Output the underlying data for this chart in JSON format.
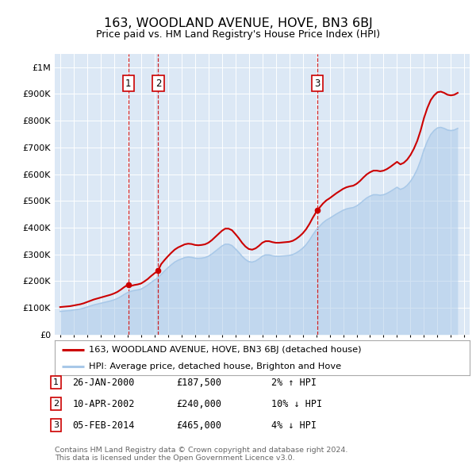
{
  "title": "163, WOODLAND AVENUE, HOVE, BN3 6BJ",
  "subtitle": "Price paid vs. HM Land Registry's House Price Index (HPI)",
  "background_color": "#ffffff",
  "plot_bg_color": "#dce8f5",
  "ylim": [
    0,
    1050000
  ],
  "yticks": [
    0,
    100000,
    200000,
    300000,
    400000,
    500000,
    600000,
    700000,
    800000,
    900000,
    1000000
  ],
  "ytick_labels": [
    "£0",
    "£100K",
    "£200K",
    "£300K",
    "£400K",
    "£500K",
    "£600K",
    "£700K",
    "£800K",
    "£900K",
    "£1M"
  ],
  "xlim_start": 1994.6,
  "xlim_end": 2025.4,
  "hpi_color": "#a8c8e8",
  "hpi_line_color": "#a8c8e8",
  "price_color": "#cc0000",
  "marker_color": "#cc0000",
  "vline_color": "#cc0000",
  "transactions": [
    {
      "id": 1,
      "date": "26-JAN-2000",
      "year": 2000.07,
      "price": 187500,
      "pct": "2%",
      "dir": "↑"
    },
    {
      "id": 2,
      "date": "10-APR-2002",
      "year": 2002.28,
      "price": 240000,
      "pct": "10%",
      "dir": "↓"
    },
    {
      "id": 3,
      "date": "05-FEB-2014",
      "year": 2014.1,
      "price": 465000,
      "pct": "4%",
      "dir": "↓"
    }
  ],
  "legend_label_red": "163, WOODLAND AVENUE, HOVE, BN3 6BJ (detached house)",
  "legend_label_blue": "HPI: Average price, detached house, Brighton and Hove",
  "footer1": "Contains HM Land Registry data © Crown copyright and database right 2024.",
  "footer2": "This data is licensed under the Open Government Licence v3.0.",
  "hpi_data_x": [
    1995.0,
    1995.25,
    1995.5,
    1995.75,
    1996.0,
    1996.25,
    1996.5,
    1996.75,
    1997.0,
    1997.25,
    1997.5,
    1997.75,
    1998.0,
    1998.25,
    1998.5,
    1998.75,
    1999.0,
    1999.25,
    1999.5,
    1999.75,
    2000.0,
    2000.25,
    2000.5,
    2000.75,
    2001.0,
    2001.25,
    2001.5,
    2001.75,
    2002.0,
    2002.25,
    2002.5,
    2002.75,
    2003.0,
    2003.25,
    2003.5,
    2003.75,
    2004.0,
    2004.25,
    2004.5,
    2004.75,
    2005.0,
    2005.25,
    2005.5,
    2005.75,
    2006.0,
    2006.25,
    2006.5,
    2006.75,
    2007.0,
    2007.25,
    2007.5,
    2007.75,
    2008.0,
    2008.25,
    2008.5,
    2008.75,
    2009.0,
    2009.25,
    2009.5,
    2009.75,
    2010.0,
    2010.25,
    2010.5,
    2010.75,
    2011.0,
    2011.25,
    2011.5,
    2011.75,
    2012.0,
    2012.25,
    2012.5,
    2012.75,
    2013.0,
    2013.25,
    2013.5,
    2013.75,
    2014.0,
    2014.25,
    2014.5,
    2014.75,
    2015.0,
    2015.25,
    2015.5,
    2015.75,
    2016.0,
    2016.25,
    2016.5,
    2016.75,
    2017.0,
    2017.25,
    2017.5,
    2017.75,
    2018.0,
    2018.25,
    2018.5,
    2018.75,
    2019.0,
    2019.25,
    2019.5,
    2019.75,
    2020.0,
    2020.25,
    2020.5,
    2020.75,
    2021.0,
    2021.25,
    2021.5,
    2021.75,
    2022.0,
    2022.25,
    2022.5,
    2022.75,
    2023.0,
    2023.25,
    2023.5,
    2023.75,
    2024.0,
    2024.25,
    2024.5
  ],
  "hpi_data_y": [
    87000,
    88000,
    89000,
    90000,
    92000,
    94000,
    96000,
    99000,
    103000,
    107000,
    111000,
    114000,
    117000,
    120000,
    123000,
    126000,
    130000,
    135000,
    142000,
    150000,
    157000,
    162000,
    165000,
    167000,
    170000,
    177000,
    185000,
    195000,
    204000,
    212000,
    225000,
    238000,
    250000,
    261000,
    271000,
    278000,
    283000,
    288000,
    290000,
    289000,
    286000,
    285000,
    286000,
    288000,
    293000,
    301000,
    311000,
    321000,
    331000,
    338000,
    338000,
    333000,
    321000,
    308000,
    293000,
    281000,
    273000,
    271000,
    275000,
    283000,
    293000,
    298000,
    298000,
    295000,
    293000,
    293000,
    294000,
    295000,
    296000,
    299000,
    305000,
    313000,
    323000,
    336000,
    353000,
    373000,
    391000,
    405000,
    418000,
    428000,
    435000,
    443000,
    451000,
    458000,
    465000,
    470000,
    473000,
    475000,
    481000,
    490000,
    501000,
    511000,
    518000,
    523000,
    523000,
    521000,
    523000,
    528000,
    535000,
    543000,
    551000,
    543000,
    548000,
    558000,
    573000,
    593000,
    618000,
    651000,
    691000,
    723000,
    748000,
    763000,
    773000,
    775000,
    771000,
    765000,
    763000,
    765000,
    771000
  ]
}
